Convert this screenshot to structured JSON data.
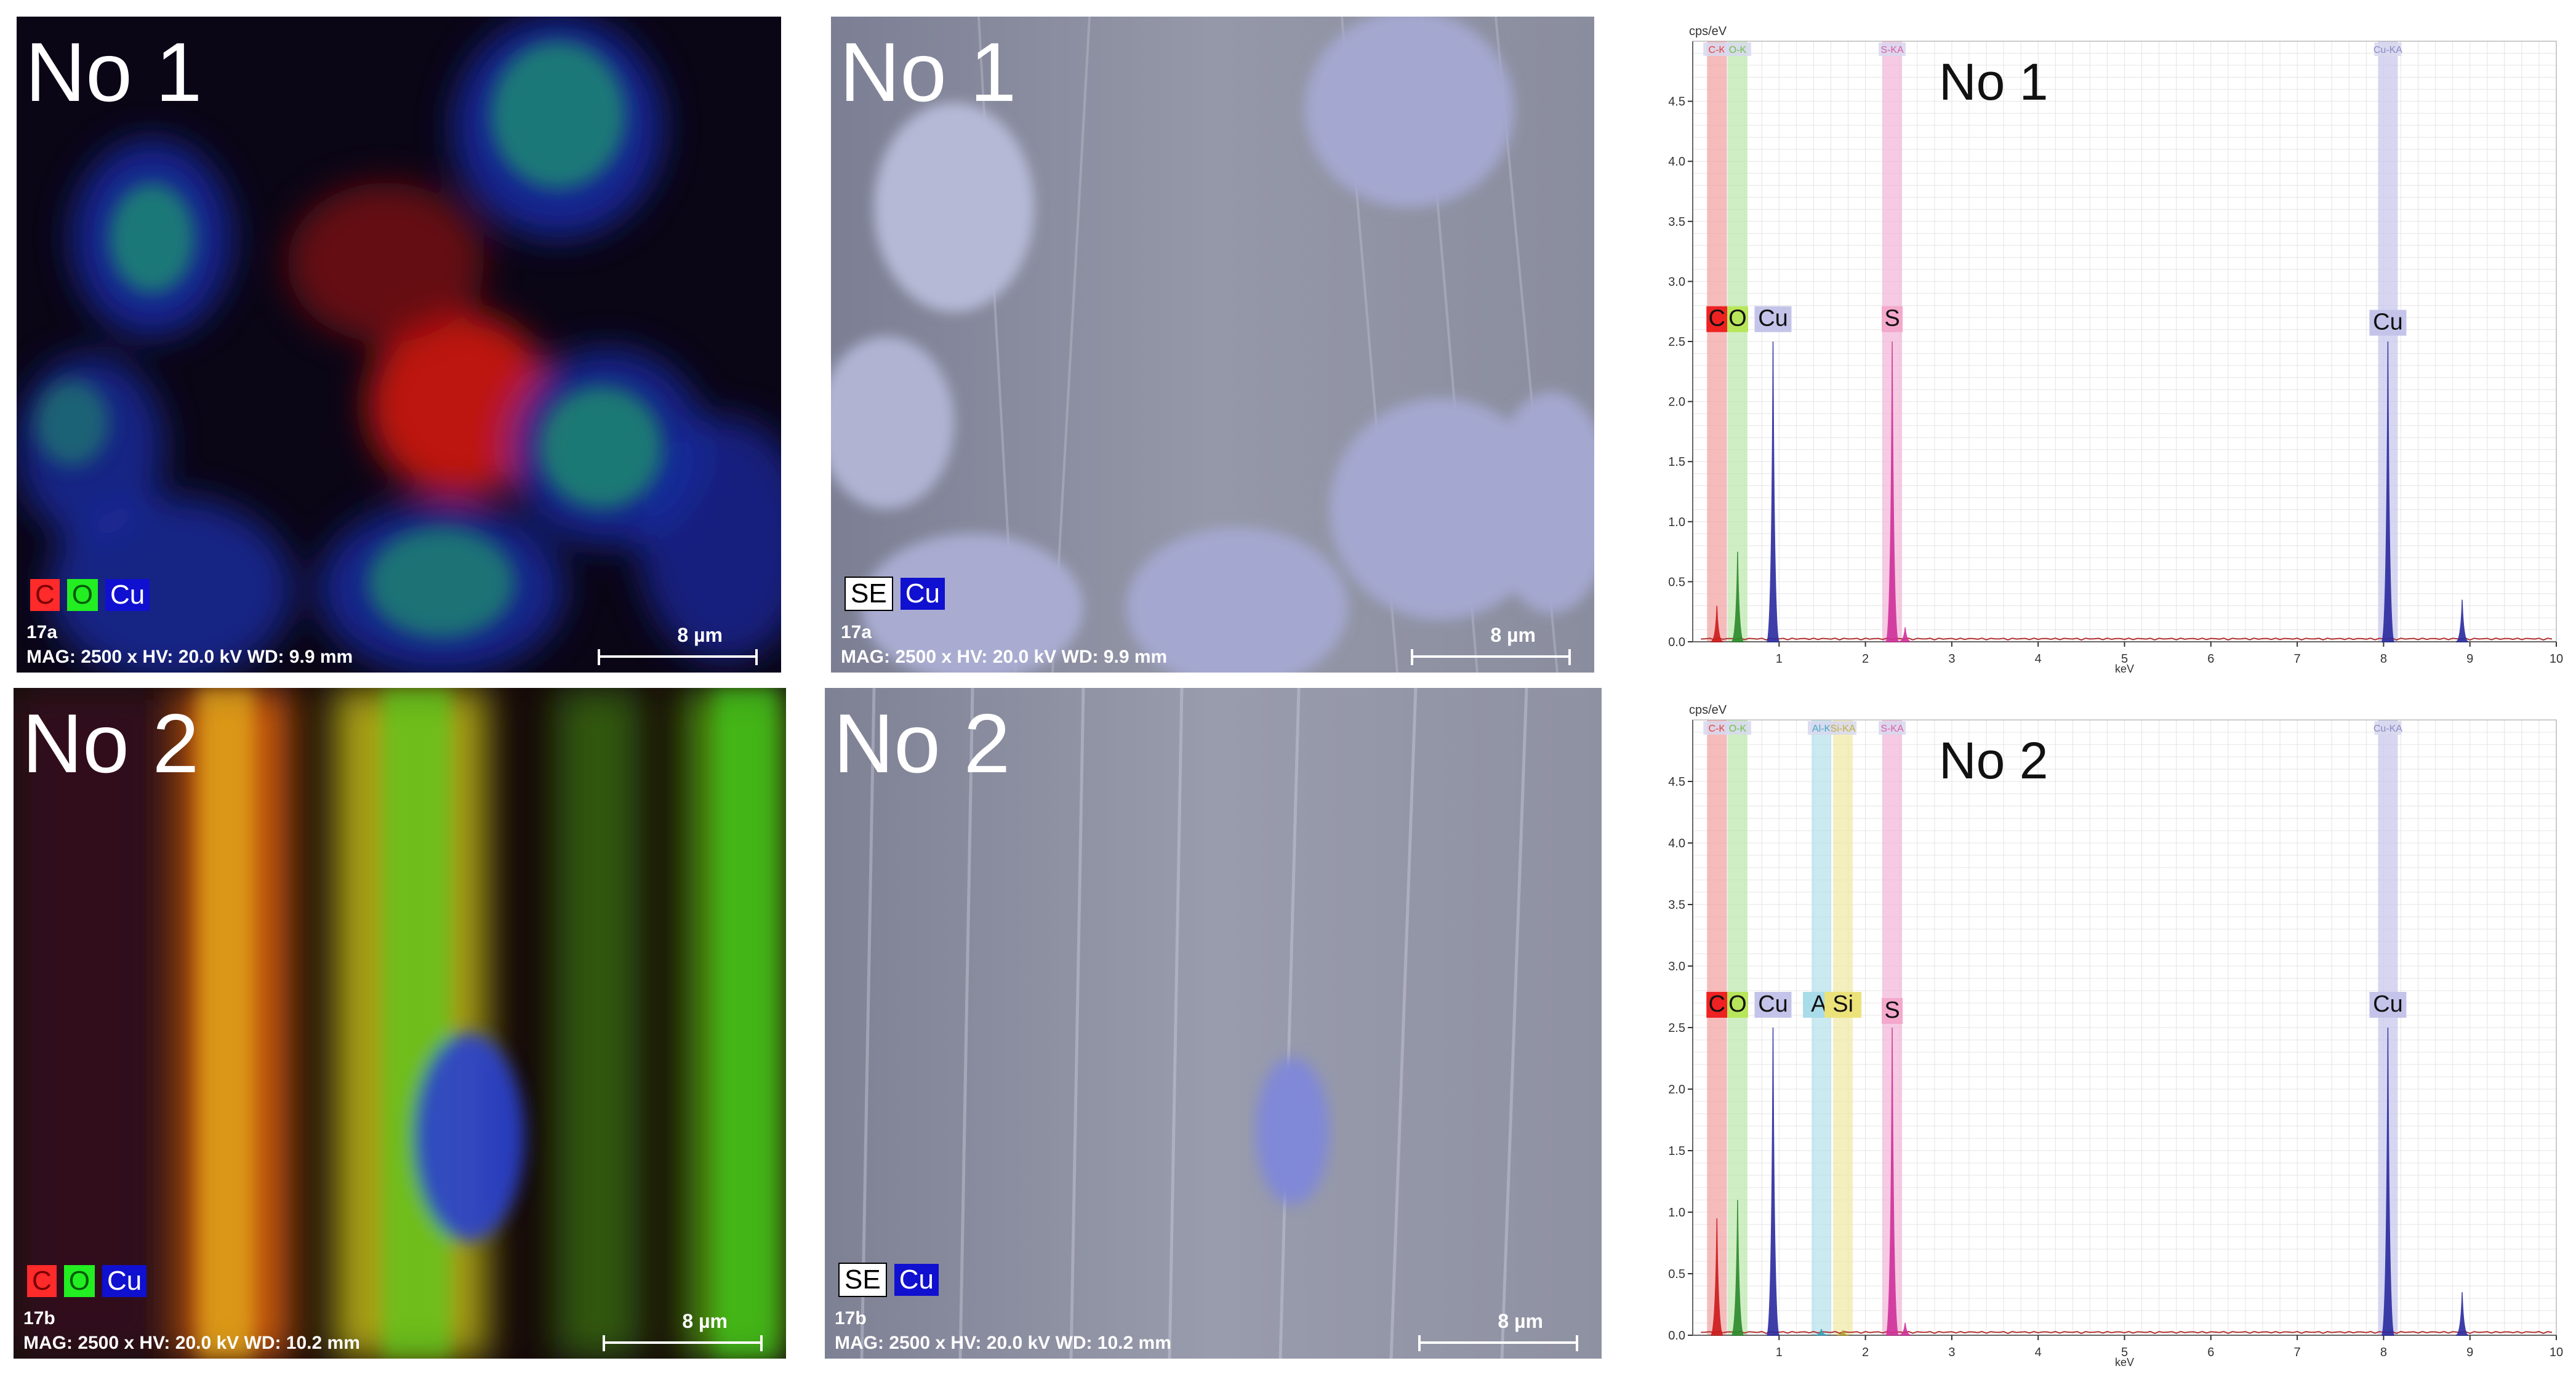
{
  "maps": [
    {
      "title": "No 1",
      "legend": [
        {
          "text": "C",
          "bg": "#ff2a2a",
          "fg": "#7a0000"
        },
        {
          "text": "O",
          "bg": "#22ee22",
          "fg": "#055a05"
        },
        {
          "text": "Cu",
          "bg": "#1010d0",
          "fg": "#ffffff"
        }
      ],
      "sample_id": "17a",
      "info": "MAG: 2500 x  HV: 20.0 kV  WD: 9.9 mm",
      "scale": "8 µm"
    },
    {
      "title": "No 1",
      "legend": [
        {
          "text": "SE",
          "bg": "#ffffff",
          "fg": "#000000"
        },
        {
          "text": "Cu",
          "bg": "#1010d0",
          "fg": "#ffffff"
        }
      ],
      "sample_id": "17a",
      "info": "MAG: 2500 x  HV: 20.0 kV  WD: 9.9 mm",
      "scale": "8 µm"
    },
    {
      "title": "No 2",
      "legend": [
        {
          "text": "C",
          "bg": "#ff2a2a",
          "fg": "#7a0000"
        },
        {
          "text": "O",
          "bg": "#22ee22",
          "fg": "#055a05"
        },
        {
          "text": "Cu",
          "bg": "#1010d0",
          "fg": "#ffffff"
        }
      ],
      "sample_id": "17b",
      "info": "MAG: 2500 x  HV: 20.0 kV  WD: 10.2 mm",
      "scale": "8 µm"
    },
    {
      "title": "No 2",
      "legend": [
        {
          "text": "SE",
          "bg": "#ffffff",
          "fg": "#000000"
        },
        {
          "text": "Cu",
          "bg": "#1010d0",
          "fg": "#ffffff"
        }
      ],
      "sample_id": "17b",
      "info": "MAG: 2500 x  HV: 20.0 kV  WD: 10.2 mm",
      "scale": "8 µm"
    }
  ],
  "chart_data": [
    {
      "type": "line",
      "title": "No 1",
      "ylabel": "cps/eV",
      "xlabel": "keV",
      "xlim": [
        0,
        10
      ],
      "ylim": [
        0,
        5
      ],
      "xticks": [
        1,
        2,
        3,
        4,
        5,
        6,
        7,
        8,
        9,
        10
      ],
      "yticks": [
        0.0,
        0.5,
        1.0,
        1.5,
        2.0,
        2.5,
        3.0,
        3.5,
        4.0,
        4.5
      ],
      "line_labels": [
        {
          "text": "C-K",
          "x": 0.28,
          "color": "#e34040"
        },
        {
          "text": "O-K",
          "x": 0.52,
          "color": "#6fc24a"
        },
        {
          "text": "S-KA",
          "x": 2.31,
          "color": "#d860a8"
        },
        {
          "text": "Cu-KA",
          "x": 8.05,
          "color": "#8a8ac8"
        }
      ],
      "element_labels": [
        {
          "text": "C",
          "x": 0.28,
          "y": 2.65,
          "bg": "#ee2222",
          "fg": "#111111"
        },
        {
          "text": "O",
          "x": 0.52,
          "y": 2.65,
          "bg": "#b8e65a",
          "fg": "#111111"
        },
        {
          "text": "Cu",
          "x": 0.93,
          "y": 2.65,
          "bg": "#c4c4ea",
          "fg": "#111111"
        },
        {
          "text": "S",
          "x": 2.31,
          "y": 2.65,
          "bg": "#f4a8cc",
          "fg": "#111111"
        },
        {
          "text": "Cu",
          "x": 8.05,
          "y": 2.62,
          "bg": "#c4c4ea",
          "fg": "#111111"
        }
      ],
      "bands": [
        {
          "x": 0.28,
          "color": "#f3a6a6"
        },
        {
          "x": 0.52,
          "color": "#bfe8b0"
        },
        {
          "x": 2.31,
          "color": "#f2b8d8"
        },
        {
          "x": 8.05,
          "color": "#c8c8ec"
        }
      ],
      "series": [
        {
          "color": "#cc1a1a",
          "peaks": [
            [
              0.28,
              0.3
            ]
          ]
        },
        {
          "color": "#2a8a2a",
          "peaks": [
            [
              0.52,
              0.75
            ]
          ]
        },
        {
          "color": "#d0309a",
          "peaks": [
            [
              2.31,
              2.5
            ],
            [
              2.46,
              0.12
            ]
          ]
        },
        {
          "color": "#2a2aa0",
          "peaks": [
            [
              0.93,
              2.5
            ],
            [
              8.05,
              2.5
            ],
            [
              8.91,
              0.35
            ]
          ]
        }
      ]
    },
    {
      "type": "line",
      "title": "No 2",
      "ylabel": "cps/eV",
      "xlabel": "keV",
      "xlim": [
        0,
        10
      ],
      "ylim": [
        0,
        5
      ],
      "xticks": [
        1,
        2,
        3,
        4,
        5,
        6,
        7,
        8,
        9,
        10
      ],
      "yticks": [
        0.0,
        0.5,
        1.0,
        1.5,
        2.0,
        2.5,
        3.0,
        3.5,
        4.0,
        4.5
      ],
      "line_labels": [
        {
          "text": "C-K",
          "x": 0.28,
          "color": "#e34040"
        },
        {
          "text": "O-K",
          "x": 0.52,
          "color": "#6fc24a"
        },
        {
          "text": "Al-K",
          "x": 1.49,
          "color": "#4aa8c0"
        },
        {
          "text": "Si-KA",
          "x": 1.74,
          "color": "#c0b040"
        },
        {
          "text": "S-KA",
          "x": 2.31,
          "color": "#d860a8"
        },
        {
          "text": "Cu-KA",
          "x": 8.05,
          "color": "#8a8ac8"
        }
      ],
      "element_labels": [
        {
          "text": "C",
          "x": 0.28,
          "y": 2.65,
          "bg": "#ee2222",
          "fg": "#111111"
        },
        {
          "text": "O",
          "x": 0.52,
          "y": 2.65,
          "bg": "#b8e65a",
          "fg": "#111111"
        },
        {
          "text": "Cu",
          "x": 0.93,
          "y": 2.65,
          "bg": "#c4c4ea",
          "fg": "#111111"
        },
        {
          "text": "Al",
          "x": 1.49,
          "y": 2.65,
          "bg": "#a8dce8",
          "fg": "#111111"
        },
        {
          "text": "Si",
          "x": 1.74,
          "y": 2.65,
          "bg": "#ece27a",
          "fg": "#111111"
        },
        {
          "text": "S",
          "x": 2.31,
          "y": 2.6,
          "bg": "#f4a8cc",
          "fg": "#111111"
        },
        {
          "text": "Cu",
          "x": 8.05,
          "y": 2.65,
          "bg": "#c4c4ea",
          "fg": "#111111"
        }
      ],
      "bands": [
        {
          "x": 0.28,
          "color": "#f3a6a6"
        },
        {
          "x": 0.52,
          "color": "#bfe8b0"
        },
        {
          "x": 1.49,
          "color": "#b8e2ec"
        },
        {
          "x": 1.74,
          "color": "#f0eaa8"
        },
        {
          "x": 2.31,
          "color": "#f2b8d8"
        },
        {
          "x": 8.05,
          "color": "#c8c8ec"
        }
      ],
      "series": [
        {
          "color": "#cc1a1a",
          "peaks": [
            [
              0.28,
              0.95
            ]
          ]
        },
        {
          "color": "#2a8a2a",
          "peaks": [
            [
              0.52,
              1.1
            ]
          ]
        },
        {
          "color": "#3aa0b8",
          "peaks": [
            [
              1.49,
              0.05
            ]
          ]
        },
        {
          "color": "#b0a030",
          "peaks": [
            [
              1.74,
              0.04
            ]
          ]
        },
        {
          "color": "#d0309a",
          "peaks": [
            [
              2.31,
              2.5
            ],
            [
              2.46,
              0.1
            ]
          ]
        },
        {
          "color": "#2a2aa0",
          "peaks": [
            [
              0.93,
              2.5
            ],
            [
              8.05,
              2.5
            ],
            [
              8.91,
              0.35
            ]
          ]
        }
      ]
    }
  ]
}
